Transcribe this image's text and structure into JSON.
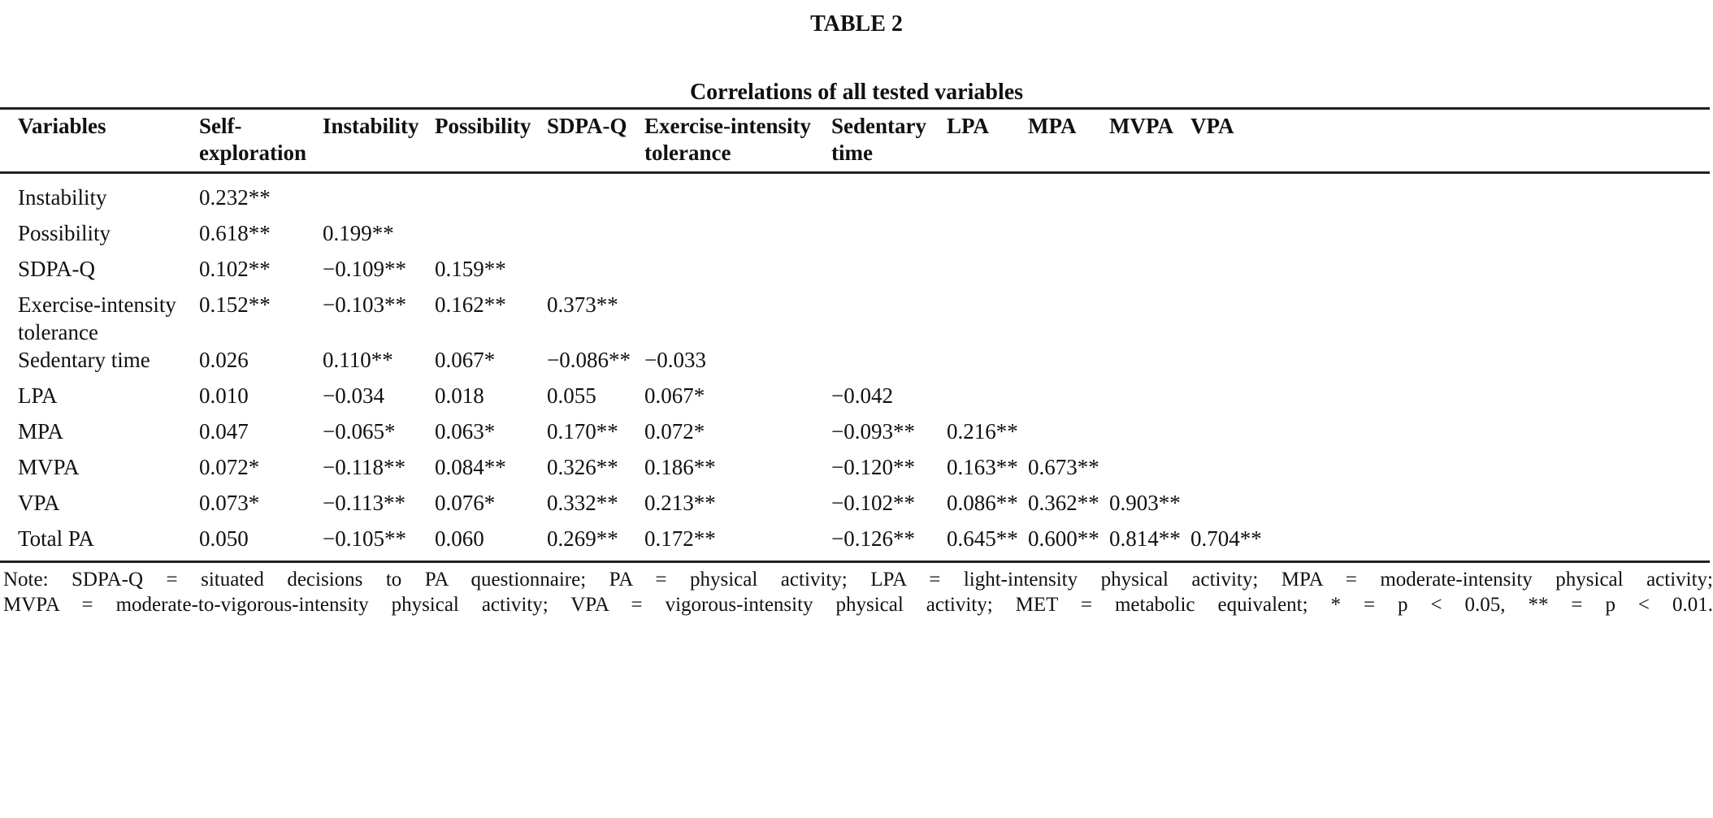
{
  "table_label": "TABLE 2",
  "table_title": "Correlations of all tested variables",
  "columns": [
    "Variables",
    "Self-exploration",
    "Instability",
    "Possibility",
    "SDPA-Q",
    "Exercise-intensity tolerance",
    "Sedentary time",
    "LPA",
    "MPA",
    "MVPA",
    "VPA"
  ],
  "rows": [
    {
      "label": "Instability",
      "values": [
        "0.232**"
      ]
    },
    {
      "label": "Possibility",
      "values": [
        "0.618**",
        "0.199**"
      ]
    },
    {
      "label": "SDPA-Q",
      "values": [
        "0.102**",
        "−0.109**",
        "0.159**"
      ]
    },
    {
      "label": "Exercise-intensity tolerance",
      "values": [
        "0.152**",
        "−0.103**",
        "0.162**",
        "0.373**"
      ]
    },
    {
      "label": "Sedentary time",
      "values": [
        "0.026",
        "0.110**",
        "0.067*",
        "−0.086**",
        "−0.033"
      ]
    },
    {
      "label": "LPA",
      "values": [
        "0.010",
        "−0.034",
        "0.018",
        "0.055",
        "0.067*",
        "−0.042"
      ]
    },
    {
      "label": "MPA",
      "values": [
        "0.047",
        "−0.065*",
        "0.063*",
        "0.170**",
        "0.072*",
        "−0.093**",
        "0.216**"
      ]
    },
    {
      "label": "MVPA",
      "values": [
        "0.072*",
        "−0.118**",
        "0.084**",
        "0.326**",
        "0.186**",
        "−0.120**",
        "0.163**",
        "0.673**"
      ]
    },
    {
      "label": "VPA",
      "values": [
        "0.073*",
        "−0.113**",
        "0.076*",
        "0.332**",
        "0.213**",
        "−0.102**",
        "0.086**",
        "0.362**",
        "0.903**"
      ]
    },
    {
      "label": "Total PA",
      "values": [
        "0.050",
        "−0.105**",
        "0.060",
        "0.269**",
        "0.172**",
        "−0.126**",
        "0.645**",
        "0.600**",
        "0.814**",
        "0.704**"
      ]
    }
  ],
  "note": {
    "line1": "Note: SDPA-Q = situated decisions to PA questionnaire; PA = physical activity; LPA = light-intensity physical activity; MPA = moderate-intensity physical activity;",
    "line2": "MVPA = moderate-to-vigorous-intensity physical activity; VPA = vigorous-intensity physical activity; MET = metabolic equivalent; * = p < 0.05, ** = p < 0.01."
  }
}
